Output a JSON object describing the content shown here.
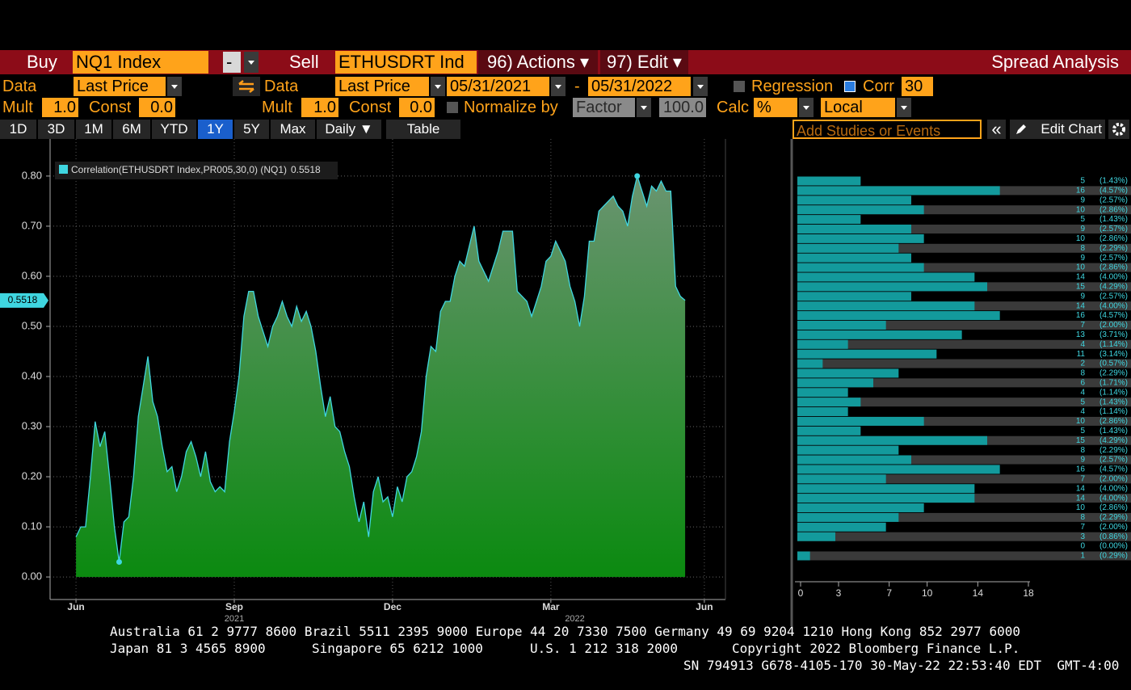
{
  "toolbar": {
    "buy": "Buy",
    "buy_security": "NQ1 Index",
    "buy_side": "-",
    "sell": "Sell",
    "sell_security": "ETHUSDRT Ind",
    "actions": "96) Actions ▾",
    "edit": "97) Edit ▾",
    "title": "Spread Analysis",
    "data_1": "Data",
    "field_1": "Last Price",
    "data_2": "Data",
    "field_2": "Last Price",
    "start_date": "05/31/2021",
    "date_separator": "-",
    "end_date": "05/31/2022",
    "regression": "Regression",
    "corr": "Corr",
    "corr_window": "30",
    "mult_1": "Mult",
    "mult_1_value": "1.0",
    "const_1": "Const",
    "const_1_value": "0.0",
    "mult_2": "Mult",
    "mult_2_value": "1.0",
    "const_2": "Const",
    "const_2_value": "0.0",
    "normalize_by": "Normalize by",
    "normalize_method": "Factor",
    "normalize_value": "100.0",
    "calc": "Calc",
    "calc_value": "%",
    "currency": "Local",
    "tabs": [
      "1D",
      "3D",
      "1M",
      "6M",
      "YTD",
      "1Y",
      "5Y",
      "Max",
      "Daily ▼"
    ],
    "table": "Table",
    "add_studies": "Add Studies or Events",
    "collapse": "«",
    "edit_chart": "Edit Chart"
  },
  "chart_data": [
    {
      "type": "area",
      "series": [
        {
          "name": "Correlation(ETHUSDRT Index,PR005,30,0) (NQ1)",
          "color": "#3fd6e0",
          "values": [
            0.08,
            0.1,
            0.1,
            0.2,
            0.31,
            0.26,
            0.29,
            0.2,
            0.1,
            0.03,
            0.11,
            0.12,
            0.2,
            0.32,
            0.38,
            0.44,
            0.35,
            0.32,
            0.26,
            0.21,
            0.22,
            0.17,
            0.2,
            0.25,
            0.27,
            0.24,
            0.2,
            0.25,
            0.19,
            0.17,
            0.18,
            0.17,
            0.27,
            0.33,
            0.4,
            0.52,
            0.57,
            0.57,
            0.52,
            0.49,
            0.46,
            0.5,
            0.52,
            0.55,
            0.52,
            0.5,
            0.54,
            0.51,
            0.53,
            0.5,
            0.45,
            0.38,
            0.32,
            0.36,
            0.3,
            0.29,
            0.25,
            0.22,
            0.16,
            0.11,
            0.15,
            0.08,
            0.17,
            0.2,
            0.15,
            0.16,
            0.12,
            0.18,
            0.15,
            0.2,
            0.21,
            0.24,
            0.29,
            0.4,
            0.46,
            0.45,
            0.53,
            0.55,
            0.55,
            0.6,
            0.63,
            0.62,
            0.66,
            0.7,
            0.63,
            0.61,
            0.59,
            0.62,
            0.65,
            0.69,
            0.69,
            0.69,
            0.57,
            0.56,
            0.55,
            0.52,
            0.55,
            0.58,
            0.63,
            0.64,
            0.67,
            0.65,
            0.63,
            0.58,
            0.55,
            0.5,
            0.56,
            0.67,
            0.67,
            0.73,
            0.74,
            0.75,
            0.76,
            0.74,
            0.73,
            0.7,
            0.76,
            0.8,
            0.77,
            0.74,
            0.78,
            0.77,
            0.79,
            0.77,
            0.77,
            0.58,
            0.56,
            0.5518
          ]
        }
      ],
      "xlim": [
        -5.4,
        135.4
      ],
      "xticks": [
        {
          "value": 0,
          "label": "Jun"
        },
        {
          "value": 33,
          "label": "Sep"
        },
        {
          "value": 66,
          "label": "Dec"
        },
        {
          "value": 99,
          "label": "Mar"
        },
        {
          "value": 131,
          "label": "Jun"
        }
      ],
      "year_ticks": [
        {
          "value": 33,
          "label": "2021"
        },
        {
          "value": 104,
          "label": "2022"
        }
      ],
      "ylim": [
        -0.045,
        0.874
      ],
      "yticks": [
        {
          "value": 0,
          "label": "0.00"
        },
        {
          "value": 0.1,
          "label": "0.10"
        },
        {
          "value": 0.2,
          "label": "0.20"
        },
        {
          "value": 0.3,
          "label": "0.30"
        },
        {
          "value": 0.4,
          "label": "0.40"
        },
        {
          "value": 0.5,
          "label": "0.50"
        },
        {
          "value": 0.6,
          "label": "0.60"
        },
        {
          "value": 0.7,
          "label": "0.70"
        },
        {
          "value": 0.8,
          "label": "0.80"
        }
      ],
      "grid": true
    },
    {
      "type": "bar",
      "orientation": "horizontal",
      "color": "#139a9c",
      "values": [
        5,
        16,
        9,
        10,
        5,
        9,
        10,
        8,
        9,
        10,
        14,
        15,
        9,
        14,
        16,
        7,
        13,
        4,
        11,
        2,
        8,
        6,
        4,
        5,
        4,
        10,
        5,
        15,
        8,
        9,
        16,
        7,
        14,
        14,
        10,
        8,
        7,
        3,
        0,
        1
      ],
      "shares": [
        1.43,
        4.57,
        2.57,
        2.86,
        1.43,
        2.57,
        2.86,
        2.29,
        2.57,
        2.86,
        4.0,
        4.29,
        2.57,
        4.0,
        4.57,
        2.0,
        3.71,
        1.14,
        3.14,
        0.57,
        2.29,
        1.71,
        1.14,
        1.43,
        1.14,
        2.86,
        1.43,
        4.29,
        2.29,
        2.57,
        4.57,
        2.0,
        4.0,
        4.0,
        2.86,
        2.29,
        2.0,
        0.86,
        0.0,
        0.29
      ],
      "share_labels": [
        "(1.43%)",
        "(4.57%)",
        "(2.57%)",
        "(2.86%)",
        "(1.43%)",
        "(2.57%)",
        "(2.86%)",
        "(2.29%)",
        "(2.57%)",
        "(2.86%)",
        "(4.00%)",
        "(4.29%)",
        "(2.57%)",
        "(4.00%)",
        "(4.57%)",
        "(2.00%)",
        "(3.71%)",
        "(1.14%)",
        "(3.14%)",
        "(0.57%)",
        "(2.29%)",
        "(1.71%)",
        "(1.14%)",
        "(1.43%)",
        "(1.14%)",
        "(2.86%)",
        "(1.43%)",
        "(4.29%)",
        "(2.29%)",
        "(2.57%)",
        "(4.57%)",
        "(2.00%)",
        "(4.00%)",
        "(4.00%)",
        "(2.86%)",
        "(2.29%)",
        "(2.00%)",
        "(0.86%)",
        "(0.00%)",
        "(0.29%)"
      ],
      "xlim": [
        0,
        18
      ],
      "xticks": [
        0,
        3,
        7,
        10,
        14,
        18
      ]
    }
  ],
  "footer": {
    "line_1": "Australia 61 2 9777 8600 Brazil 5511 2395 9000 Europe 44 20 7330 7500 Germany 49 69 9204 1210 Hong Kong 852 2977 6000",
    "japan": "Japan 81 3 4565 8900",
    "singapore": "Singapore 65 6212 1000",
    "us": "U.S. 1 212 318 2000",
    "copyright": "Copyright 2022 Bloomberg Finance L.P.",
    "session": "SN 794913 G678-4105-170 30-May-22 22:53:40 EDT  GMT-4:00"
  }
}
